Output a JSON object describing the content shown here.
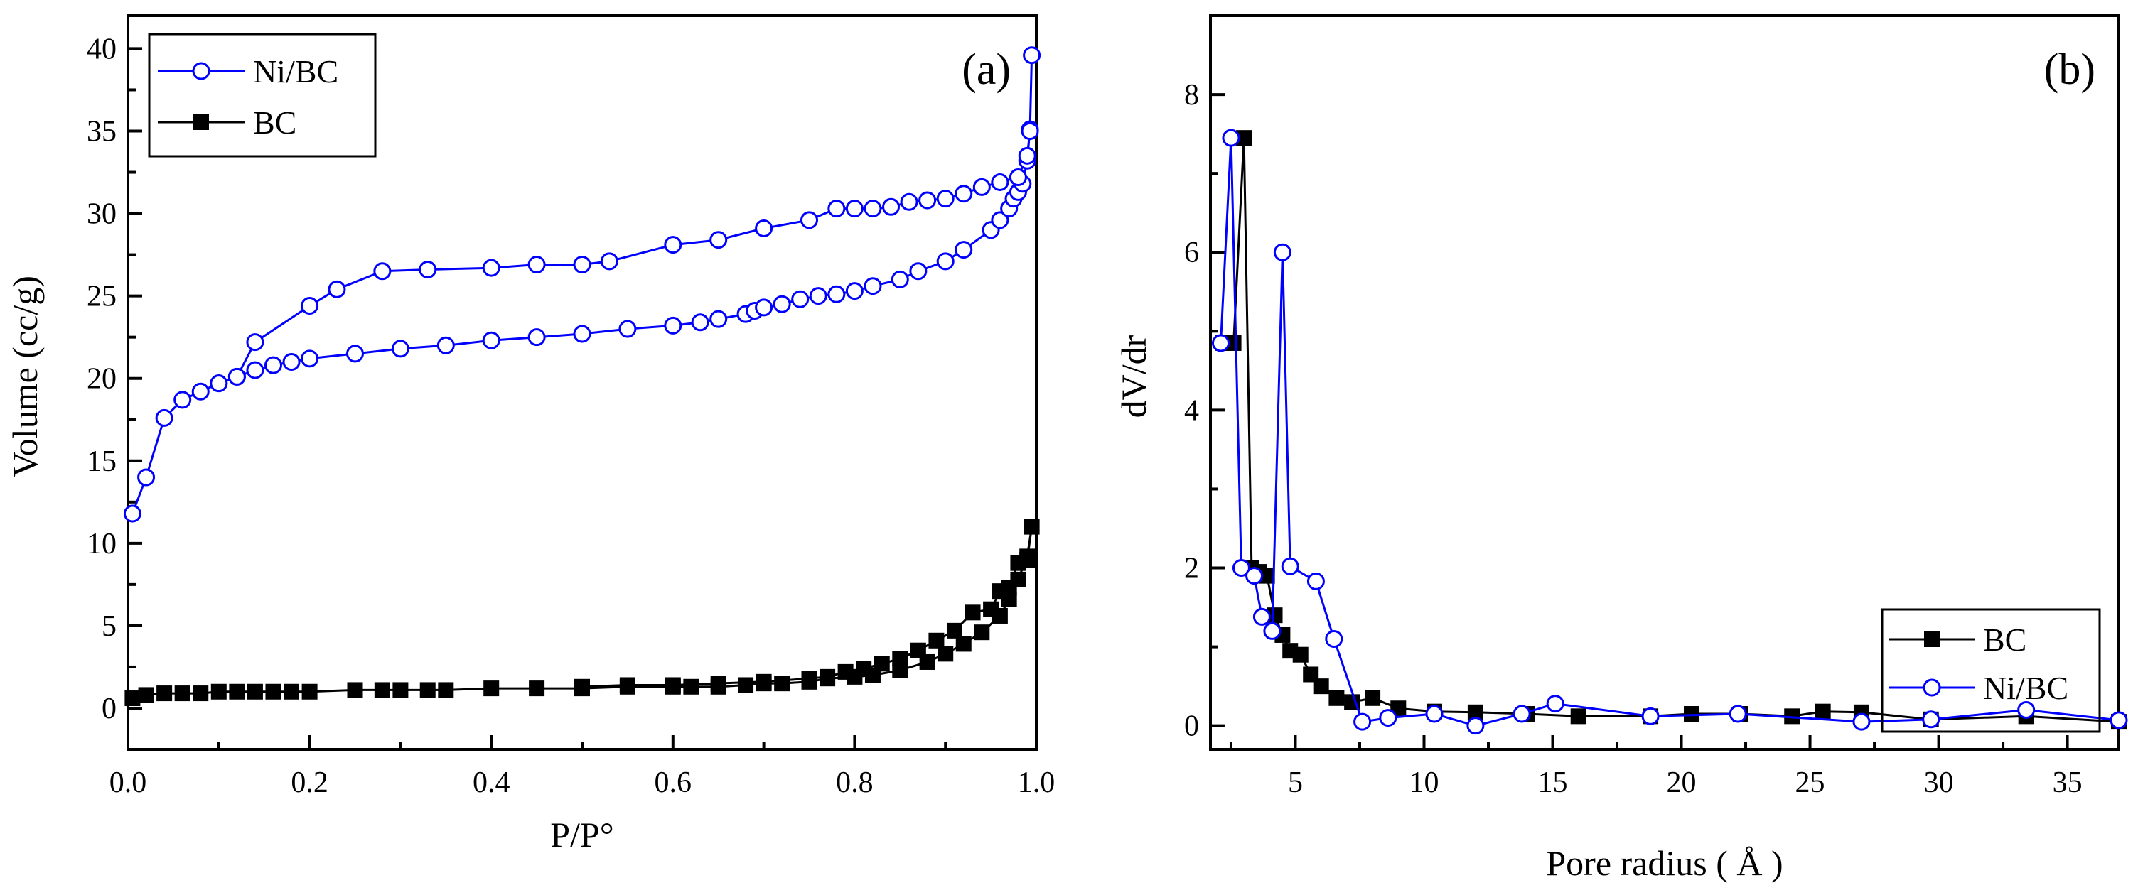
{
  "chart_data": [
    {
      "type": "line",
      "panel_label": "(a)",
      "xlabel": "P/P°",
      "ylabel": "Volume (cc/g)",
      "xlim": [
        0.0,
        1.0
      ],
      "ylim": [
        -2.5,
        42
      ],
      "xticks": [
        "0.0",
        "0.2",
        "0.4",
        "0.6",
        "0.8",
        "1.0"
      ],
      "yticks": [
        "0",
        "5",
        "10",
        "15",
        "20",
        "25",
        "30",
        "35",
        "40"
      ],
      "legend_position": "top-left",
      "series": [
        {
          "name": "Ni/BC",
          "color": "#0000ff",
          "marker": "open-circle",
          "x": [
            0.005,
            0.02,
            0.04,
            0.06,
            0.08,
            0.1,
            0.12,
            0.14,
            0.16,
            0.18,
            0.2,
            0.25,
            0.3,
            0.35,
            0.4,
            0.45,
            0.5,
            0.55,
            0.6,
            0.63,
            0.65,
            0.68,
            0.69,
            0.7,
            0.72,
            0.74,
            0.76,
            0.78,
            0.8,
            0.82,
            0.85,
            0.87,
            0.9,
            0.92,
            0.95,
            0.96,
            0.97,
            0.975,
            0.98,
            0.985,
            0.99,
            0.993,
            0.995,
            0.993,
            0.99,
            0.98,
            0.96,
            0.94,
            0.92,
            0.9,
            0.88,
            0.86,
            0.84,
            0.82,
            0.8,
            0.78,
            0.75,
            0.7,
            0.65,
            0.6,
            0.53,
            0.5,
            0.45,
            0.4,
            0.33,
            0.28,
            0.23,
            0.2,
            0.14,
            0.12,
            0.1
          ],
          "y": [
            11.8,
            14.0,
            17.6,
            18.7,
            19.2,
            19.7,
            20.1,
            20.5,
            20.8,
            21.0,
            21.2,
            21.5,
            21.8,
            22.0,
            22.3,
            22.5,
            22.7,
            23.0,
            23.2,
            23.4,
            23.6,
            23.9,
            24.1,
            24.3,
            24.5,
            24.8,
            25.0,
            25.1,
            25.3,
            25.6,
            26.0,
            26.5,
            27.1,
            27.8,
            29.0,
            29.6,
            30.3,
            30.9,
            31.3,
            31.8,
            33.2,
            35.1,
            39.6,
            35.0,
            33.5,
            32.2,
            31.9,
            31.6,
            31.2,
            30.9,
            30.8,
            30.7,
            30.4,
            30.3,
            30.3,
            30.3,
            29.6,
            29.1,
            28.4,
            28.1,
            27.1,
            26.9,
            26.9,
            26.7,
            26.6,
            26.5,
            25.4,
            24.4,
            22.2,
            20.1,
            19.7
          ]
        },
        {
          "name": "BC",
          "color": "#000000",
          "marker": "filled-square",
          "x": [
            0.005,
            0.02,
            0.04,
            0.06,
            0.08,
            0.1,
            0.12,
            0.14,
            0.16,
            0.18,
            0.2,
            0.25,
            0.28,
            0.3,
            0.33,
            0.35,
            0.4,
            0.45,
            0.5,
            0.55,
            0.6,
            0.62,
            0.65,
            0.68,
            0.7,
            0.72,
            0.75,
            0.77,
            0.8,
            0.82,
            0.85,
            0.88,
            0.9,
            0.92,
            0.94,
            0.96,
            0.97,
            0.98,
            0.99,
            0.995,
            0.99,
            0.98,
            0.97,
            0.96,
            0.95,
            0.93,
            0.91,
            0.89,
            0.87,
            0.85,
            0.83,
            0.81,
            0.79,
            0.77,
            0.75,
            0.7,
            0.65,
            0.6,
            0.55,
            0.5
          ],
          "y": [
            0.6,
            0.8,
            0.9,
            0.9,
            0.9,
            1.0,
            1.0,
            1.0,
            1.0,
            1.0,
            1.0,
            1.1,
            1.1,
            1.1,
            1.1,
            1.1,
            1.2,
            1.2,
            1.2,
            1.3,
            1.3,
            1.3,
            1.3,
            1.4,
            1.5,
            1.5,
            1.6,
            1.8,
            1.9,
            2.0,
            2.3,
            2.8,
            3.3,
            3.9,
            4.6,
            5.6,
            6.6,
            7.8,
            9.2,
            11.0,
            9.0,
            8.8,
            7.3,
            7.1,
            6.0,
            5.8,
            4.7,
            4.1,
            3.5,
            3.0,
            2.7,
            2.4,
            2.2,
            1.9,
            1.8,
            1.6,
            1.5,
            1.4,
            1.4,
            1.3
          ]
        }
      ]
    },
    {
      "type": "line",
      "panel_label": "(b)",
      "xlabel": "Pore radius ( Å )",
      "ylabel": "dV/dr",
      "xlim": [
        1.7,
        37
      ],
      "ylim": [
        -0.3,
        9.0
      ],
      "xticks": [
        "5",
        "10",
        "15",
        "20",
        "25",
        "30",
        "35"
      ],
      "yticks": [
        "0",
        "2",
        "4",
        "6",
        "8"
      ],
      "legend_position": "bottom-right",
      "series": [
        {
          "name": "BC",
          "color": "#000000",
          "marker": "filled-square",
          "x": [
            2.2,
            2.6,
            3.0,
            3.3,
            3.6,
            3.9,
            4.2,
            4.5,
            4.8,
            5.2,
            5.6,
            6.0,
            6.6,
            7.2,
            8.0,
            9.0,
            10.4,
            12.0,
            14.0,
            16.0,
            18.8,
            20.4,
            22.3,
            24.3,
            25.5,
            27.0,
            29.7,
            33.4,
            37.0
          ],
          "y": [
            4.85,
            4.85,
            7.45,
            2.0,
            1.95,
            1.9,
            1.4,
            1.15,
            0.95,
            0.9,
            0.65,
            0.5,
            0.35,
            0.3,
            0.35,
            0.22,
            0.18,
            0.17,
            0.15,
            0.12,
            0.12,
            0.15,
            0.15,
            0.12,
            0.18,
            0.17,
            0.08,
            0.12,
            0.05
          ]
        },
        {
          "name": "Ni/BC",
          "color": "#0000ff",
          "marker": "open-circle",
          "x": [
            2.1,
            2.5,
            2.9,
            3.4,
            3.7,
            4.1,
            4.5,
            4.8,
            5.8,
            6.5,
            7.6,
            8.6,
            10.4,
            12.0,
            13.8,
            15.1,
            18.8,
            22.2,
            27.0,
            29.7,
            33.4,
            37.0
          ],
          "y": [
            4.85,
            7.45,
            2.0,
            1.9,
            1.38,
            1.2,
            6.0,
            2.02,
            1.83,
            1.1,
            0.05,
            0.1,
            0.15,
            0.0,
            0.15,
            0.28,
            0.12,
            0.15,
            0.05,
            0.08,
            0.2,
            0.07
          ]
        }
      ]
    }
  ]
}
